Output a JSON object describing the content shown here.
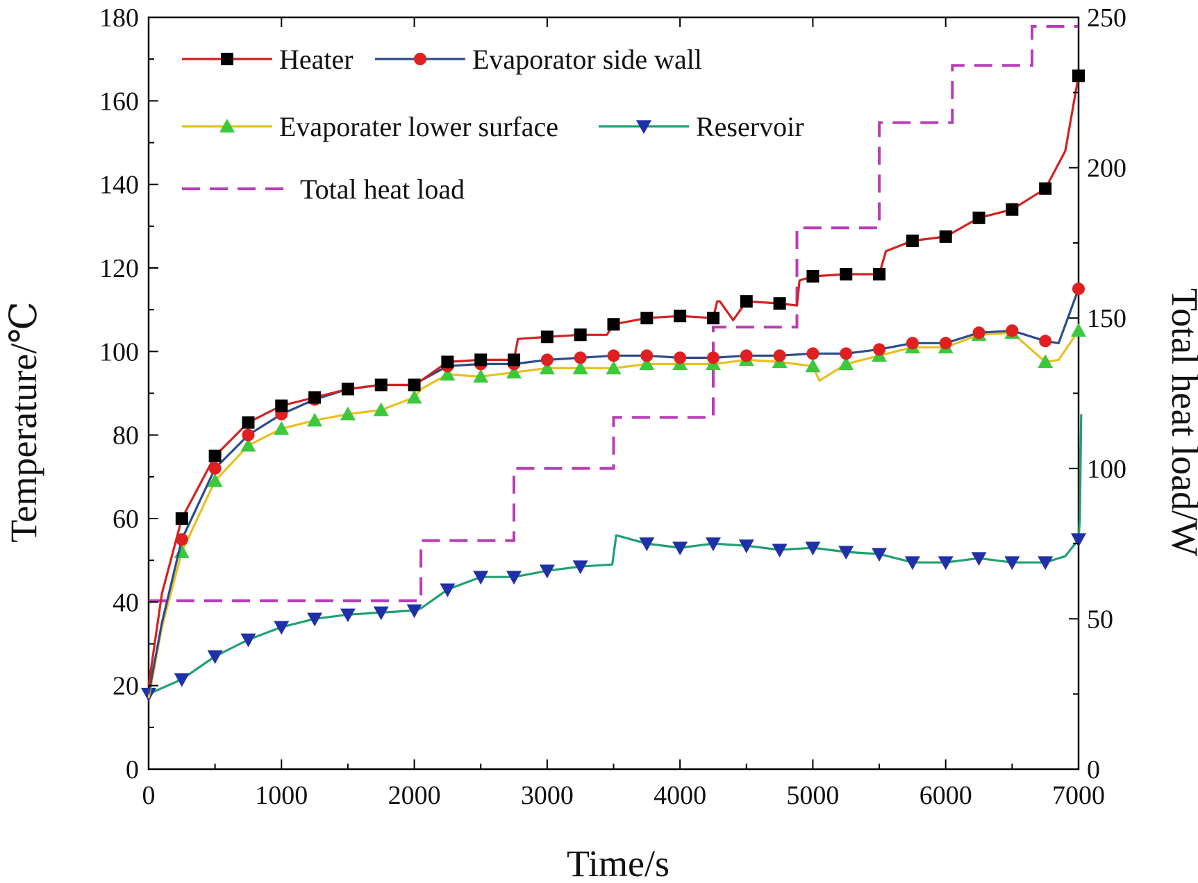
{
  "chart_data": {
    "type": "line",
    "xlabel": "Time/s",
    "ylabel": "Temperature/℃",
    "y2label": "Total heat load/W",
    "xlim": [
      0,
      7000
    ],
    "ylim": [
      0,
      180
    ],
    "y2lim": [
      0,
      250
    ],
    "xticks": [
      "0",
      "1000",
      "2000",
      "3000",
      "4000",
      "5000",
      "6000",
      "7000"
    ],
    "yticks": [
      "0",
      "20",
      "40",
      "60",
      "80",
      "100",
      "120",
      "140",
      "160",
      "180"
    ],
    "y2ticks": [
      "0",
      "50",
      "100",
      "150",
      "200",
      "250"
    ],
    "legend_position": "top-left",
    "series": [
      {
        "name": "Heater",
        "color": "#d42020",
        "marker": "square",
        "marker_color": "#000000",
        "axis": "left",
        "x": [
          0,
          100,
          250,
          500,
          750,
          1000,
          1250,
          1500,
          1750,
          2000,
          2050,
          2250,
          2500,
          2750,
          2780,
          3000,
          3250,
          3450,
          3500,
          3750,
          4000,
          4250,
          4280,
          4300,
          4400,
          4500,
          4750,
          4880,
          4900,
          5000,
          5250,
          5500,
          5550,
          5750,
          6000,
          6250,
          6500,
          6750,
          6900,
          7000
        ],
        "y": [
          20,
          42,
          60,
          75,
          83,
          87,
          89,
          91,
          92,
          92,
          93,
          97.5,
          98,
          98,
          103,
          103.5,
          104,
          104,
          106.5,
          108,
          108.5,
          108,
          112,
          112,
          107.5,
          112,
          111.5,
          111,
          117,
          118,
          118.5,
          118.5,
          124,
          126.5,
          127.5,
          132,
          134,
          139,
          148,
          166
        ]
      },
      {
        "name": "Evaporator side wall",
        "color": "#2a4c8c",
        "marker": "circle",
        "marker_color": "#e02020",
        "axis": "left",
        "x": [
          0,
          100,
          250,
          500,
          750,
          1000,
          1250,
          1500,
          1750,
          2000,
          2050,
          2250,
          2500,
          2750,
          3000,
          3250,
          3500,
          3750,
          4000,
          4250,
          4500,
          4750,
          5000,
          5250,
          5500,
          5750,
          6000,
          6250,
          6500,
          6750,
          6850,
          7000
        ],
        "y": [
          18,
          35,
          55,
          72,
          80,
          85,
          88.5,
          91,
          92,
          92,
          93,
          96.5,
          97,
          97,
          98,
          98.5,
          99,
          99,
          98.5,
          98.5,
          99,
          99,
          99.5,
          99.5,
          100.5,
          102,
          102,
          104.5,
          105,
          102.5,
          102,
          115
        ]
      },
      {
        "name": "Evaporater lower surface",
        "color": "#e8c020",
        "marker": "triangle-up",
        "marker_color": "#3cc83c",
        "axis": "left",
        "x": [
          0,
          100,
          250,
          500,
          750,
          1000,
          1250,
          1500,
          1750,
          2000,
          2050,
          2250,
          2500,
          2750,
          3000,
          3250,
          3500,
          3750,
          4000,
          4250,
          4500,
          4750,
          5000,
          5050,
          5250,
          5500,
          5750,
          6000,
          6250,
          6500,
          6750,
          6850,
          7000
        ],
        "y": [
          17,
          34,
          52,
          69,
          77.5,
          81.5,
          83.5,
          85,
          86,
          89,
          91,
          94.5,
          94,
          95,
          96,
          96,
          96,
          97,
          97,
          97,
          98,
          97.5,
          96.5,
          93,
          97,
          99,
          101,
          101,
          104,
          104.5,
          97.5,
          98,
          105
        ]
      },
      {
        "name": "Reservoir",
        "color": "#20a070",
        "marker": "triangle-down",
        "marker_color": "#2030a8",
        "axis": "left",
        "x": [
          0,
          250,
          500,
          750,
          1000,
          1250,
          1500,
          1750,
          2000,
          2050,
          2250,
          2500,
          2750,
          3000,
          3250,
          3490,
          3520,
          3750,
          4000,
          4250,
          4500,
          4750,
          5000,
          5250,
          5500,
          5750,
          6000,
          6250,
          6500,
          6750,
          6900,
          7000,
          7010,
          7020
        ],
        "y": [
          18,
          21.5,
          27,
          31,
          34,
          36,
          37,
          37.5,
          38,
          38.5,
          43,
          46,
          46,
          47.5,
          48.5,
          49,
          56,
          54,
          53,
          54,
          53.5,
          52.5,
          53,
          52,
          51.5,
          49.5,
          49.5,
          50.5,
          49.5,
          49.5,
          51,
          55,
          60,
          85
        ]
      },
      {
        "name": "Total heat load",
        "color": "#b83cb8",
        "marker": "none",
        "dashed": true,
        "axis": "right",
        "step_x": [
          0,
          2050,
          2050,
          2750,
          2750,
          3500,
          3500,
          4250,
          4250,
          4880,
          4880,
          5500,
          5500,
          6050,
          6050,
          6650,
          6650,
          7000
        ],
        "step_y": [
          56,
          56,
          76,
          76,
          100,
          100,
          117,
          117,
          147,
          147,
          180,
          180,
          215,
          215,
          234,
          234,
          247,
          247
        ]
      }
    ]
  }
}
